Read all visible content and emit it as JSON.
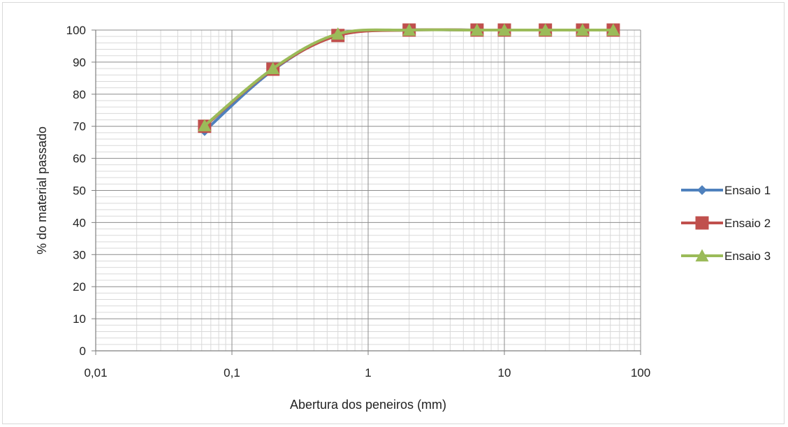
{
  "chart_data": {
    "type": "line",
    "title": "",
    "xlabel": "Abertura dos peneiros (mm)",
    "ylabel": "% do material passado",
    "xscale": "log",
    "xlim": [
      0.01,
      100
    ],
    "ylim": [
      0,
      100
    ],
    "x_ticks": [
      "0,01",
      "0,1",
      "1",
      "10",
      "100"
    ],
    "y_ticks": [
      "0",
      "10",
      "20",
      "30",
      "40",
      "50",
      "60",
      "70",
      "80",
      "90",
      "100"
    ],
    "grid": true,
    "legend_position": "right",
    "series": [
      {
        "name": "Ensaio 1",
        "color": "#4f81bd",
        "marker": "diamond",
        "x": [
          0.063,
          0.2,
          0.6,
          2,
          6.3,
          10,
          20,
          37.5,
          63
        ],
        "y": [
          68.5,
          87.5,
          98.5,
          100,
          100,
          100,
          100,
          100,
          100
        ]
      },
      {
        "name": "Ensaio 2",
        "color": "#c0504d",
        "marker": "square",
        "x": [
          0.063,
          0.2,
          0.6,
          2,
          6.3,
          10,
          20,
          37.5,
          63
        ],
        "y": [
          70,
          87.8,
          98.3,
          100,
          100,
          100,
          100,
          100,
          100
        ]
      },
      {
        "name": "Ensaio 3",
        "color": "#9bbb59",
        "marker": "triangle",
        "x": [
          0.063,
          0.2,
          0.6,
          2,
          6.3,
          10,
          20,
          37.5,
          63
        ],
        "y": [
          70.2,
          88,
          98.8,
          100,
          100,
          100,
          100,
          100,
          100
        ]
      }
    ]
  }
}
